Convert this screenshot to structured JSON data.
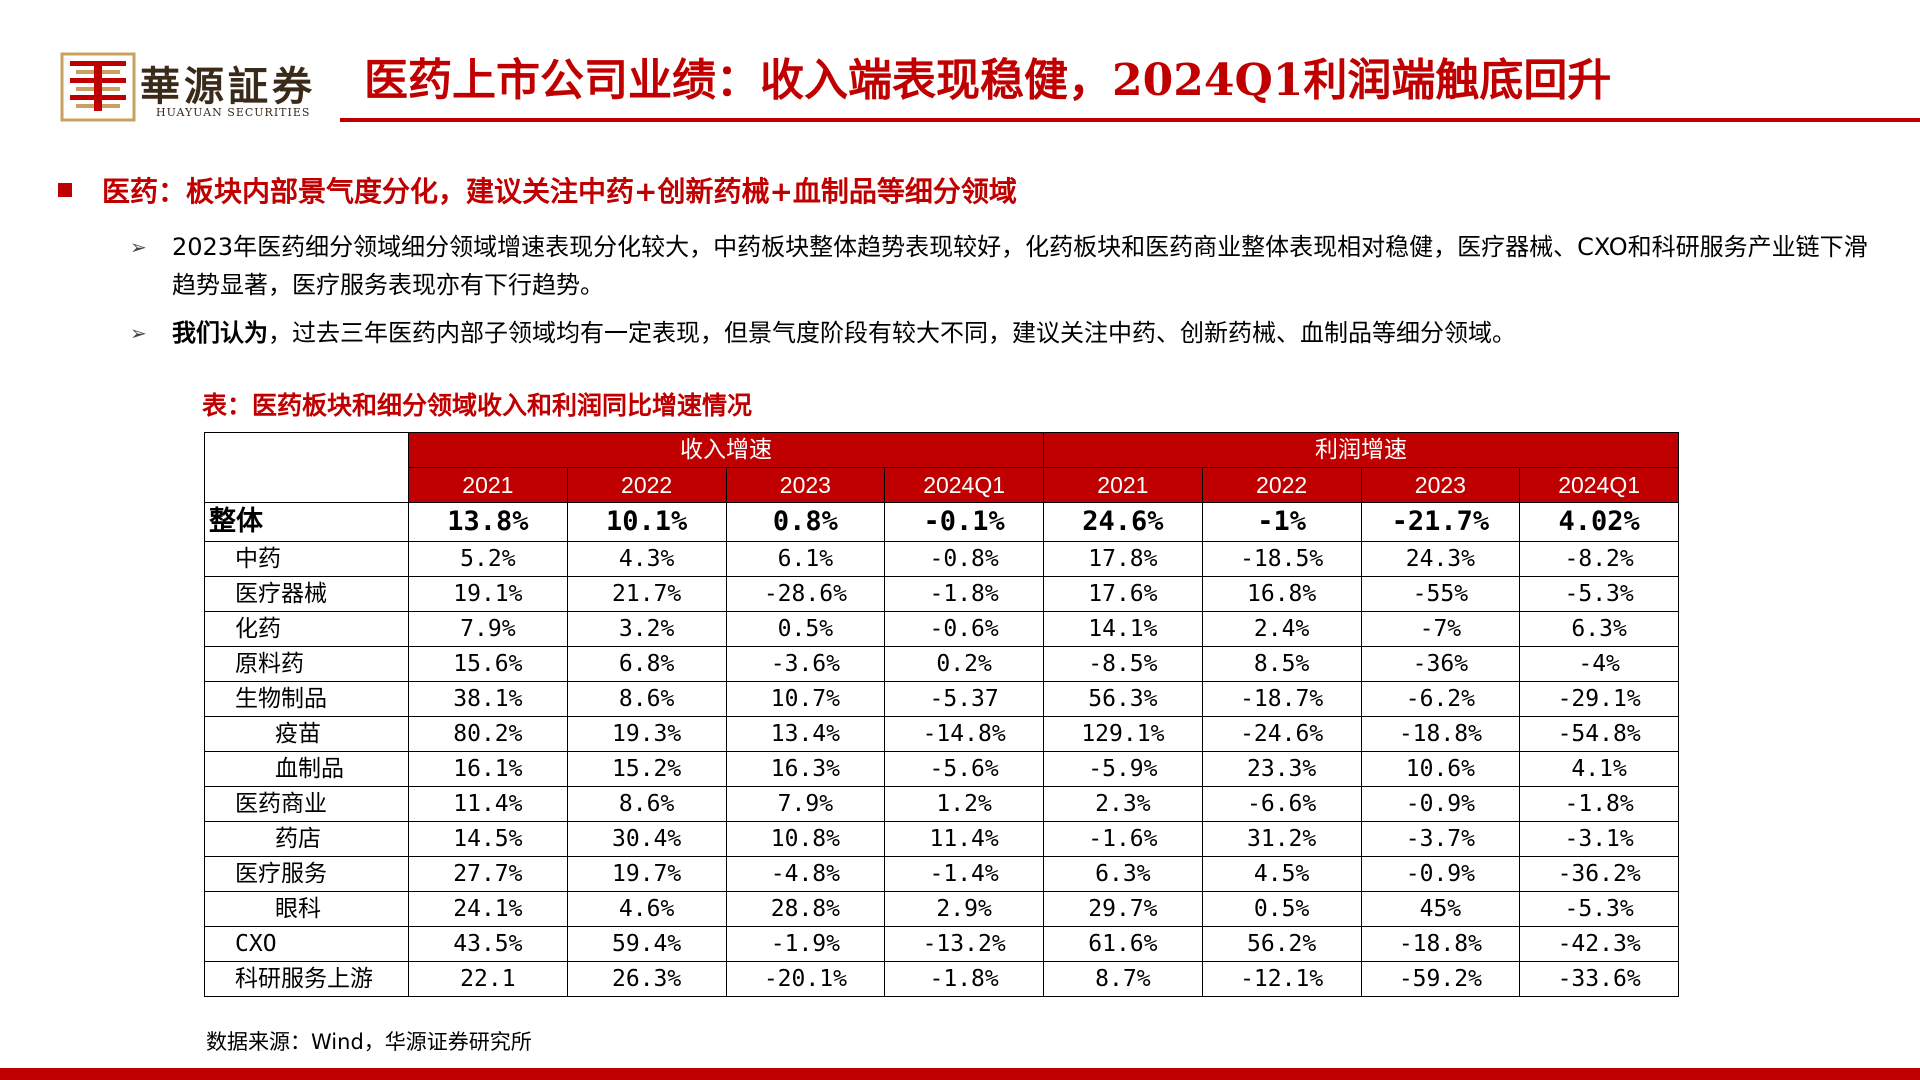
{
  "header": {
    "brand_cn": "華源証券",
    "brand_en": "HUAYUAN SECURITIES",
    "title": "医药上市公司业绩：收入端表现稳健，2024Q1利润端触底回升",
    "accent_color": "#c00000"
  },
  "section": {
    "heading": "医药：板块内部景气度分化，建议关注中药+创新药械+血制品等细分领域"
  },
  "bullets": [
    {
      "text": "2023年医药细分领域细分领域增速表现分化较大，中药板块整体趋势表现较好，化药板块和医药商业整体表现相对稳健，医疗器械、CXO和科研服务产业链下滑趋势显著，医疗服务表现亦有下行趋势。"
    },
    {
      "bold": "我们认为",
      "text": "，过去三年医药内部子领域均有一定表现，但景气度阶段有较大不同，建议关注中药、创新药械、血制品等细分领域。"
    }
  ],
  "table": {
    "caption": "表：医药板块和细分领域收入和利润同比增速情况",
    "groups": [
      "收入增速",
      "利润增速"
    ],
    "years": [
      "2021",
      "2022",
      "2023",
      "2024Q1",
      "2021",
      "2022",
      "2023",
      "2024Q1"
    ],
    "rows": [
      {
        "label": "整体",
        "values": [
          "13.8%",
          "10.1%",
          "0.8%",
          "-0.1%",
          "24.6%",
          "-1%",
          "-21.7%",
          "4.02%"
        ]
      },
      {
        "label": "中药",
        "values": [
          "5.2%",
          "4.3%",
          "6.1%",
          "-0.8%",
          "17.8%",
          "-18.5%",
          "24.3%",
          "-8.2%"
        ]
      },
      {
        "label": "医疗器械",
        "values": [
          "19.1%",
          "21.7%",
          "-28.6%",
          "-1.8%",
          "17.6%",
          "16.8%",
          "-55%",
          "-5.3%"
        ]
      },
      {
        "label": "化药",
        "values": [
          "7.9%",
          "3.2%",
          "0.5%",
          "-0.6%",
          "14.1%",
          "2.4%",
          "-7%",
          "6.3%"
        ]
      },
      {
        "label": "原料药",
        "values": [
          "15.6%",
          "6.8%",
          "-3.6%",
          "0.2%",
          "-8.5%",
          "8.5%",
          "-36%",
          "-4%"
        ]
      },
      {
        "label": "生物制品",
        "values": [
          "38.1%",
          "8.6%",
          "10.7%",
          "-5.37",
          "56.3%",
          "-18.7%",
          "-6.2%",
          "-29.1%"
        ]
      },
      {
        "label": "疫苗",
        "values": [
          "80.2%",
          "19.3%",
          "13.4%",
          "-14.8%",
          "129.1%",
          "-24.6%",
          "-18.8%",
          "-54.8%"
        ]
      },
      {
        "label": "血制品",
        "values": [
          "16.1%",
          "15.2%",
          "16.3%",
          "-5.6%",
          "-5.9%",
          "23.3%",
          "10.6%",
          "4.1%"
        ]
      },
      {
        "label": "医药商业",
        "values": [
          "11.4%",
          "8.6%",
          "7.9%",
          "1.2%",
          "2.3%",
          "-6.6%",
          "-0.9%",
          "-1.8%"
        ]
      },
      {
        "label": "药店",
        "values": [
          "14.5%",
          "30.4%",
          "10.8%",
          "11.4%",
          "-1.6%",
          "31.2%",
          "-3.7%",
          "-3.1%"
        ]
      },
      {
        "label": "医疗服务",
        "values": [
          "27.7%",
          "19.7%",
          "-4.8%",
          "-1.4%",
          "6.3%",
          "4.5%",
          "-0.9%",
          "-36.2%"
        ]
      },
      {
        "label": "眼科",
        "values": [
          "24.1%",
          "4.6%",
          "28.8%",
          "2.9%",
          "29.7%",
          "0.5%",
          "45%",
          "-5.3%"
        ]
      },
      {
        "label": "CXO",
        "values": [
          "43.5%",
          "59.4%",
          "-1.9%",
          "-13.2%",
          "61.6%",
          "56.2%",
          "-18.8%",
          "-42.3%"
        ]
      },
      {
        "label": "科研服务上游",
        "values": [
          "22.1",
          "26.3%",
          "-20.1%",
          "-1.8%",
          "8.7%",
          "-12.1%",
          "-59.2%",
          "-33.6%"
        ]
      }
    ]
  },
  "source": "数据来源：Wind，华源证券研究所"
}
